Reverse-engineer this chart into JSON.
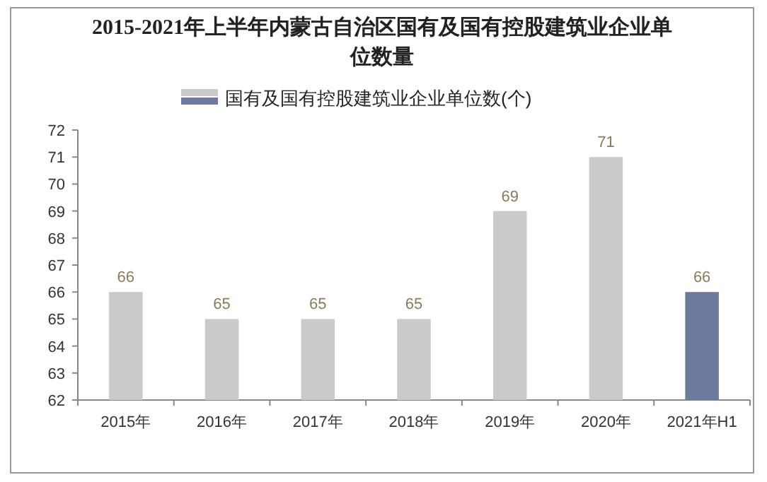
{
  "chart_data": {
    "type": "bar",
    "title": "2015-2021年上半年内蒙古自治区国有及国有控股建筑业企业单位数量",
    "categories": [
      "2015年",
      "2016年",
      "2017年",
      "2018年",
      "2019年",
      "2020年",
      "2021年H1"
    ],
    "series": [
      {
        "name": "国有及国有控股建筑业企业单位数(个)",
        "values": [
          66,
          65,
          65,
          65,
          69,
          71,
          66
        ],
        "colors": [
          "#c8cbca",
          "#c8cbca",
          "#c8cbca",
          "#c8cbca",
          "#c8cbca",
          "#c8cbca",
          "#6e79a0"
        ]
      }
    ],
    "ylim": [
      62,
      72
    ],
    "yticks": [
      62,
      63,
      64,
      65,
      66,
      67,
      68,
      69,
      70,
      71,
      72
    ],
    "data_labels": true,
    "legend": "top",
    "grid": false
  }
}
